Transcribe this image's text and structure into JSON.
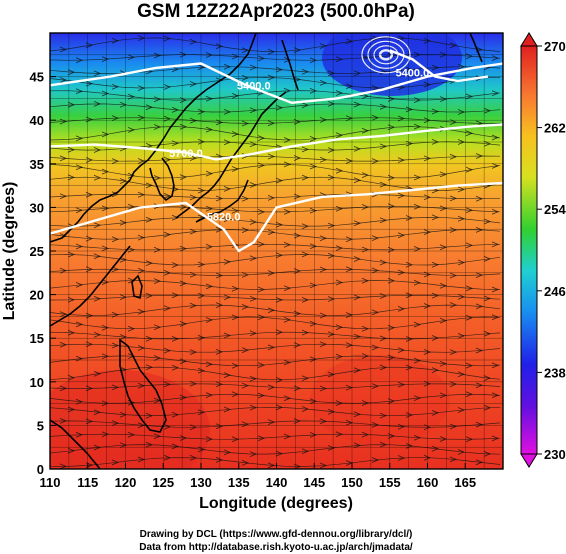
{
  "header": {
    "title": "GSM 12Z22Apr2023 (500.0hPa)"
  },
  "chart_data": {
    "type": "heatmap",
    "title": "GSM 12Z22Apr2023 (500.0hPa)",
    "xlabel": "Longitude (degrees)",
    "ylabel": "Latitude (degrees)",
    "xlim": [
      110,
      170
    ],
    "ylim": [
      0,
      50
    ],
    "x_ticks": [
      "110",
      "115",
      "120",
      "125",
      "130",
      "135",
      "140",
      "145",
      "150",
      "155",
      "160",
      "165"
    ],
    "y_ticks": [
      "0",
      "5",
      "10",
      "15",
      "20",
      "25",
      "30",
      "35",
      "40",
      "45"
    ],
    "grid": true,
    "colorbar": {
      "placement": "right",
      "min": 230,
      "max": 270,
      "ticks": [
        "230",
        "238",
        "246",
        "254",
        "262",
        "270"
      ]
    },
    "contours": [
      {
        "label": "5400.0",
        "label_lon": 137,
        "label_lat": 43.5,
        "points": [
          [
            110,
            44
          ],
          [
            118,
            45
          ],
          [
            124,
            46
          ],
          [
            130,
            46.5
          ],
          [
            136,
            44
          ],
          [
            142,
            42
          ],
          [
            148,
            42.5
          ],
          [
            154,
            43.5
          ],
          [
            160,
            45
          ],
          [
            166,
            46
          ],
          [
            170,
            46.5
          ]
        ]
      },
      {
        "label": "5700.0",
        "label_lon": 128,
        "label_lat": 35.8,
        "points": [
          [
            110,
            37
          ],
          [
            116,
            37.2
          ],
          [
            122,
            36.8
          ],
          [
            128,
            36.3
          ],
          [
            132,
            35.5
          ],
          [
            136,
            36
          ],
          [
            142,
            37
          ],
          [
            148,
            37.8
          ],
          [
            154,
            38.2
          ],
          [
            160,
            38.8
          ],
          [
            166,
            39.3
          ],
          [
            170,
            39.5
          ]
        ]
      },
      {
        "label": "5820.0",
        "label_lon": 133,
        "label_lat": 28.5,
        "points": [
          [
            110,
            27
          ],
          [
            116,
            28.5
          ],
          [
            122,
            30
          ],
          [
            128,
            30.5
          ],
          [
            133,
            27.5
          ],
          [
            135,
            25
          ],
          [
            137,
            26
          ],
          [
            140,
            30
          ],
          [
            146,
            31.2
          ],
          [
            152,
            31.5
          ],
          [
            158,
            32
          ],
          [
            164,
            32.5
          ],
          [
            170,
            32.8
          ]
        ]
      },
      {
        "label": "5400.0",
        "label_lon": 158,
        "label_lat": 45,
        "points": [
          [
            155,
            48
          ],
          [
            158,
            47
          ],
          [
            161,
            45
          ],
          [
            164,
            44.5
          ],
          [
            168,
            45
          ]
        ]
      }
    ],
    "low_center": {
      "lon": 154.5,
      "lat": 47.5
    }
  },
  "credits": {
    "drawing": "Drawing by DCL (https://www.gfd-dennou.org/library/dcl/)",
    "data": "Data from http://database.rish.kyoto-u.ac.jp/arch/jmadata/"
  },
  "colors": {
    "scale": [
      "#d010d0",
      "#3020e0",
      "#1890f0",
      "#20d0c8",
      "#30d040",
      "#c8e020",
      "#f8c020",
      "#f88030",
      "#f04020",
      "#d82020"
    ],
    "contour": "#ffffff",
    "streamline": "#101010",
    "coast": "#000000"
  }
}
